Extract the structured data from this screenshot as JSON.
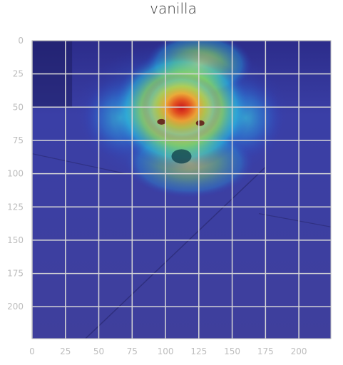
{
  "chart_data": {
    "type": "heatmap",
    "title": "vanilla",
    "xlabel": "",
    "ylabel": "",
    "xlim": [
      0,
      224
    ],
    "ylim": [
      224,
      0
    ],
    "x_ticks": [
      0,
      25,
      50,
      75,
      100,
      125,
      150,
      175,
      200
    ],
    "y_ticks": [
      0,
      25,
      50,
      75,
      100,
      125,
      150,
      175,
      200
    ],
    "grid": true,
    "colormap": "jet",
    "overlay": "grad-cam heatmap over photo of a dog lying on a tiled floor",
    "hotspots": [
      {
        "x": 112,
        "y": 57,
        "intensity": 1.0
      },
      {
        "x": 110,
        "y": 40,
        "intensity": 0.85
      },
      {
        "x": 125,
        "y": 20,
        "intensity": 0.55
      },
      {
        "x": 65,
        "y": 55,
        "intensity": 0.35
      },
      {
        "x": 160,
        "y": 55,
        "intensity": 0.35
      },
      {
        "x": 118,
        "y": 90,
        "intensity": 0.3
      }
    ],
    "colors": {
      "background": "#3d3d9a",
      "grid": "#d6d6d6",
      "frame": "#bdbdbd",
      "tick_label": "#bdbdbd",
      "title": "#333333"
    }
  }
}
